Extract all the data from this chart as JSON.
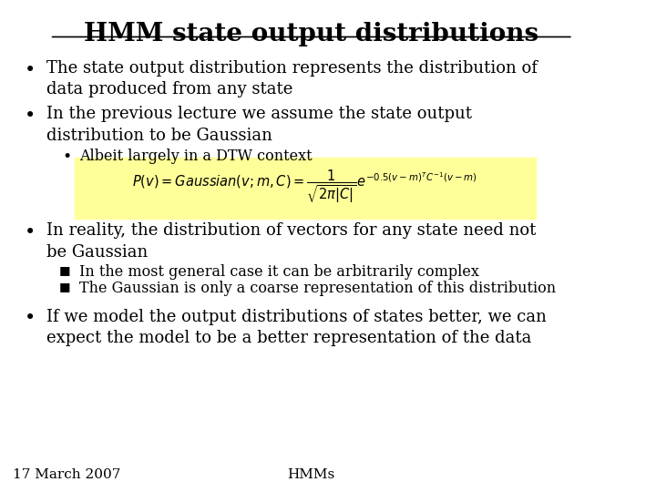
{
  "title": "HMM state output distributions",
  "background_color": "#ffffff",
  "title_fontsize": 20,
  "title_underline": true,
  "bullet1": "The state output distribution represents the distribution of\ndata produced from any state",
  "bullet2": "In the previous lecture we assume the state output\ndistribution to be Gaussian",
  "sub_bullet1": "Albeit largely in a DTW context",
  "formula_box_color": "#ffff99",
  "formula": "$P(v) = Gaussian(v; m, C) = \\dfrac{1}{\\sqrt{2\\pi|C|}} e^{-0.5(v-m)^T C^{-1}(v-m)}$",
  "bullet3": "In reality, the distribution of vectors for any state need not\nbe Gaussian",
  "sub_bullet2": "In the most general case it can be arbitrarily complex",
  "sub_bullet3": "The Gaussian is only a coarse representation of this distribution",
  "bullet4": "If we model the output distributions of states better, we can\nexpect the model to be a better representation of the data",
  "footer_left": "17 March 2007",
  "footer_center": "HMMs",
  "text_color": "#000000",
  "body_fontsize": 13,
  "sub_fontsize": 11.5,
  "footer_fontsize": 11
}
